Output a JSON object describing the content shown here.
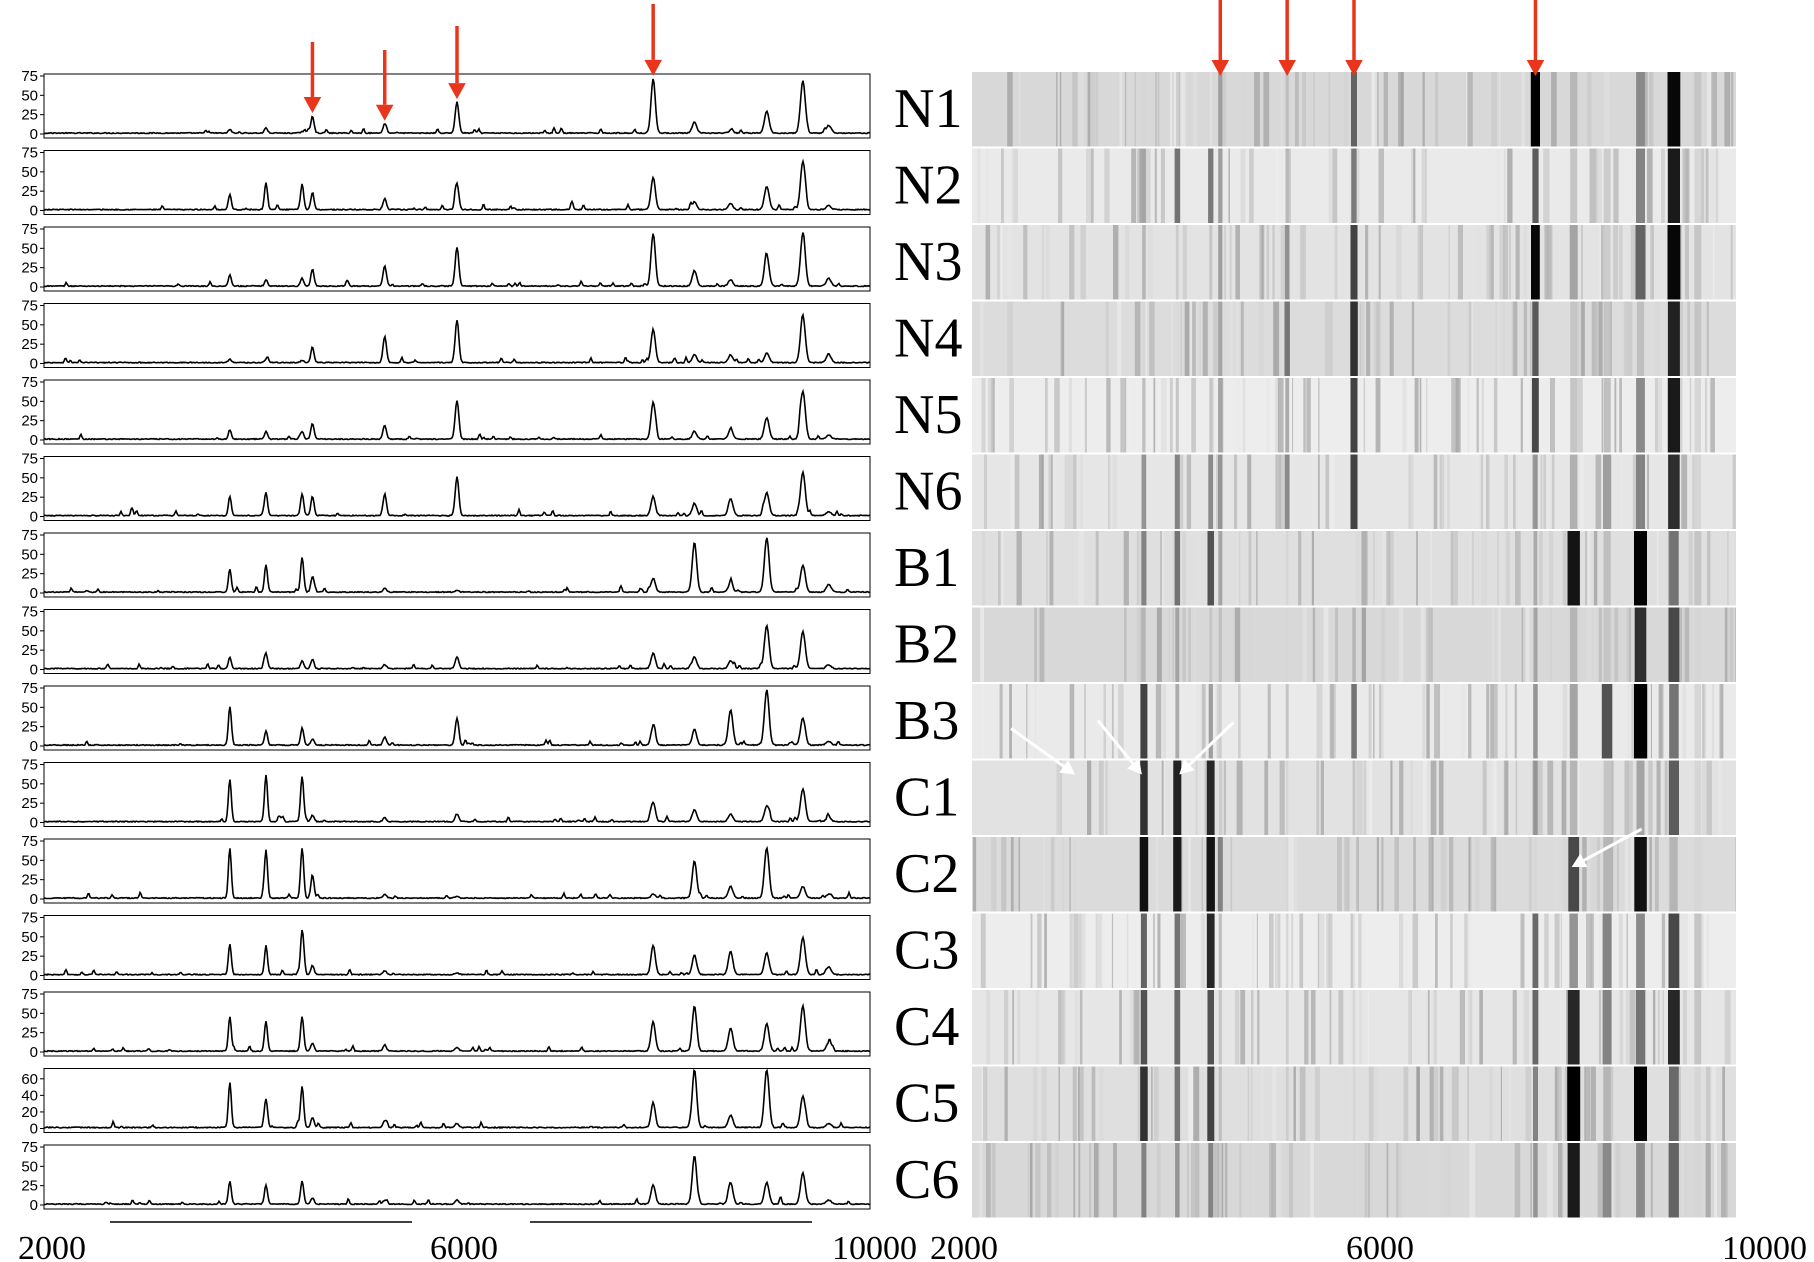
{
  "colors": {
    "marker_arrow": "#e8351b",
    "annotation_arrow": "#ffffff",
    "trace": "#000000",
    "band_dark": "#000000",
    "band_light": "#f2f2f2"
  },
  "chart_data": [
    {
      "type": "line",
      "title": "",
      "xlabel": "",
      "ylabel": "",
      "xlim": [
        2000,
        10000
      ],
      "ylim": [
        0,
        75
      ],
      "x_tick_labels": [
        "2000",
        "6000",
        "10000"
      ],
      "y_ticks": [
        0,
        25,
        50,
        75
      ],
      "y_ticks_C5": [
        0,
        20,
        40,
        60
      ],
      "marker_peaks_x": [
        4600,
        5300,
        6000,
        7900
      ],
      "peak_positions_x": [
        3800,
        4150,
        4500,
        4600,
        5300,
        6000,
        7900,
        8300,
        8650,
        9000,
        9350,
        9600
      ],
      "series": [
        {
          "name": "N1",
          "peak_heights": [
            5,
            7,
            2,
            22,
            12,
            40,
            70,
            14,
            3,
            28,
            68,
            10
          ]
        },
        {
          "name": "N2",
          "peak_heights": [
            20,
            35,
            33,
            22,
            14,
            33,
            42,
            10,
            8,
            30,
            62,
            5
          ]
        },
        {
          "name": "N3",
          "peak_heights": [
            15,
            8,
            10,
            22,
            26,
            50,
            68,
            20,
            8,
            40,
            68,
            10
          ]
        },
        {
          "name": "N4",
          "peak_heights": [
            5,
            4,
            3,
            20,
            34,
            55,
            43,
            10,
            10,
            12,
            60,
            10
          ]
        },
        {
          "name": "N5",
          "peak_heights": [
            12,
            10,
            10,
            20,
            18,
            50,
            48,
            10,
            12,
            28,
            62,
            5
          ]
        },
        {
          "name": "N6",
          "peak_heights": [
            25,
            30,
            28,
            25,
            28,
            50,
            25,
            16,
            22,
            30,
            56,
            5
          ]
        },
        {
          "name": "B1",
          "peak_heights": [
            30,
            35,
            45,
            20,
            5,
            2,
            18,
            64,
            12,
            70,
            35,
            10
          ]
        },
        {
          "name": "B2",
          "peak_heights": [
            15,
            20,
            10,
            12,
            5,
            15,
            20,
            15,
            10,
            56,
            48,
            5
          ]
        },
        {
          "name": "B3",
          "peak_heights": [
            50,
            18,
            22,
            8,
            10,
            35,
            25,
            20,
            45,
            70,
            35,
            5
          ]
        },
        {
          "name": "C1",
          "peak_heights": [
            55,
            60,
            58,
            8,
            5,
            10,
            25,
            15,
            10,
            20,
            42,
            5
          ]
        },
        {
          "name": "C2",
          "peak_heights": [
            65,
            62,
            64,
            30,
            5,
            2,
            5,
            48,
            15,
            65,
            15,
            5
          ]
        },
        {
          "name": "C3",
          "peak_heights": [
            40,
            35,
            58,
            12,
            5,
            2,
            38,
            25,
            30,
            28,
            48,
            10
          ]
        },
        {
          "name": "C4",
          "peak_heights": [
            45,
            38,
            45,
            10,
            8,
            5,
            38,
            58,
            30,
            35,
            58,
            10
          ]
        },
        {
          "name": "C5",
          "peak_heights": [
            55,
            35,
            50,
            12,
            8,
            5,
            30,
            70,
            15,
            70,
            38,
            5
          ]
        },
        {
          "name": "C6",
          "peak_heights": [
            30,
            25,
            30,
            8,
            5,
            5,
            25,
            62,
            28,
            28,
            40,
            5
          ]
        }
      ]
    },
    {
      "type": "heatmap",
      "title": "",
      "xlabel": "",
      "xlim": [
        2000,
        10000
      ],
      "x_tick_labels": [
        "2000",
        "6000",
        "10000"
      ],
      "rows": [
        "N1",
        "N2",
        "N3",
        "N4",
        "N5",
        "N6",
        "B1",
        "B2",
        "B3",
        "C1",
        "C2",
        "C3",
        "C4",
        "C5",
        "C6"
      ],
      "marker_peaks_x": [
        4600,
        5300,
        6000,
        7900
      ],
      "annotated_peaks": [
        {
          "row": "C1",
          "x": 3100
        },
        {
          "row": "C1",
          "x": 3800
        },
        {
          "row": "C1",
          "x": 4150
        },
        {
          "row": "C2",
          "x": 8300
        }
      ]
    }
  ]
}
